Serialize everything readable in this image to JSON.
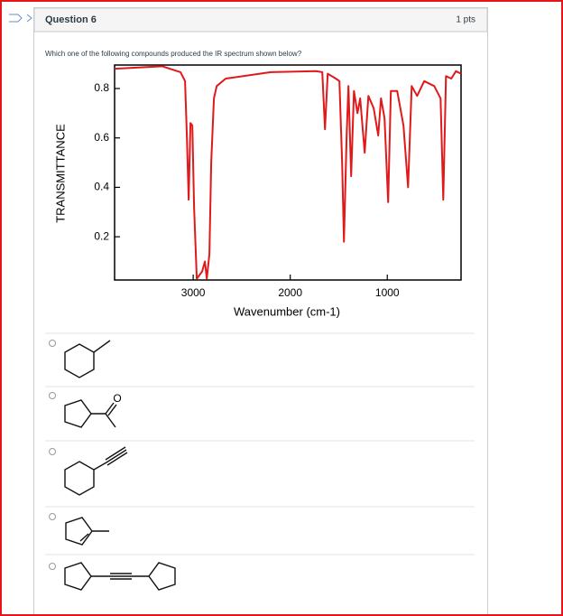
{
  "question": {
    "title": "Question 6",
    "points": "1 pts",
    "prompt": "Which one of the following compounds produced the IR spectrum shown below?",
    "spectrum": {
      "type": "line",
      "y_label": "TRANSMITTANCE",
      "x_label": "Wavenumber (cm-1)",
      "color": "#e0191b",
      "xlim": [
        3810,
        240
      ],
      "ylim": [
        0.025,
        0.895
      ],
      "xticks": [
        3000,
        2000,
        1000
      ],
      "yticks": [
        0.2,
        0.4,
        0.6,
        0.8
      ],
      "x": [
        3810,
        3317,
        3130,
        3084,
        3065,
        3047,
        3028,
        3009,
        2991,
        2963,
        2907,
        2879,
        2860,
        2833,
        2814,
        2786,
        2758,
        2665,
        2200,
        1735,
        1670,
        1642,
        1614,
        1530,
        1493,
        1465,
        1447,
        1419,
        1400,
        1372,
        1344,
        1307,
        1279,
        1233,
        1195,
        1140,
        1093,
        1065,
        1028,
        991,
        963,
        898,
        833,
        786,
        749,
        693,
        619,
        516,
        451,
        423,
        395,
        340,
        293,
        240
      ],
      "values": [
        0.88,
        0.89,
        0.866,
        0.83,
        0.61,
        0.35,
        0.66,
        0.65,
        0.32,
        0.03,
        0.06,
        0.1,
        0.03,
        0.13,
        0.5,
        0.76,
        0.81,
        0.84,
        0.866,
        0.87,
        0.866,
        0.635,
        0.86,
        0.84,
        0.83,
        0.5,
        0.18,
        0.61,
        0.81,
        0.445,
        0.79,
        0.7,
        0.76,
        0.54,
        0.77,
        0.72,
        0.61,
        0.76,
        0.68,
        0.34,
        0.79,
        0.79,
        0.65,
        0.4,
        0.81,
        0.77,
        0.83,
        0.81,
        0.76,
        0.35,
        0.85,
        0.84,
        0.87,
        0.86
      ]
    },
    "structures": {
      "ketone_oxygen": "O"
    }
  }
}
